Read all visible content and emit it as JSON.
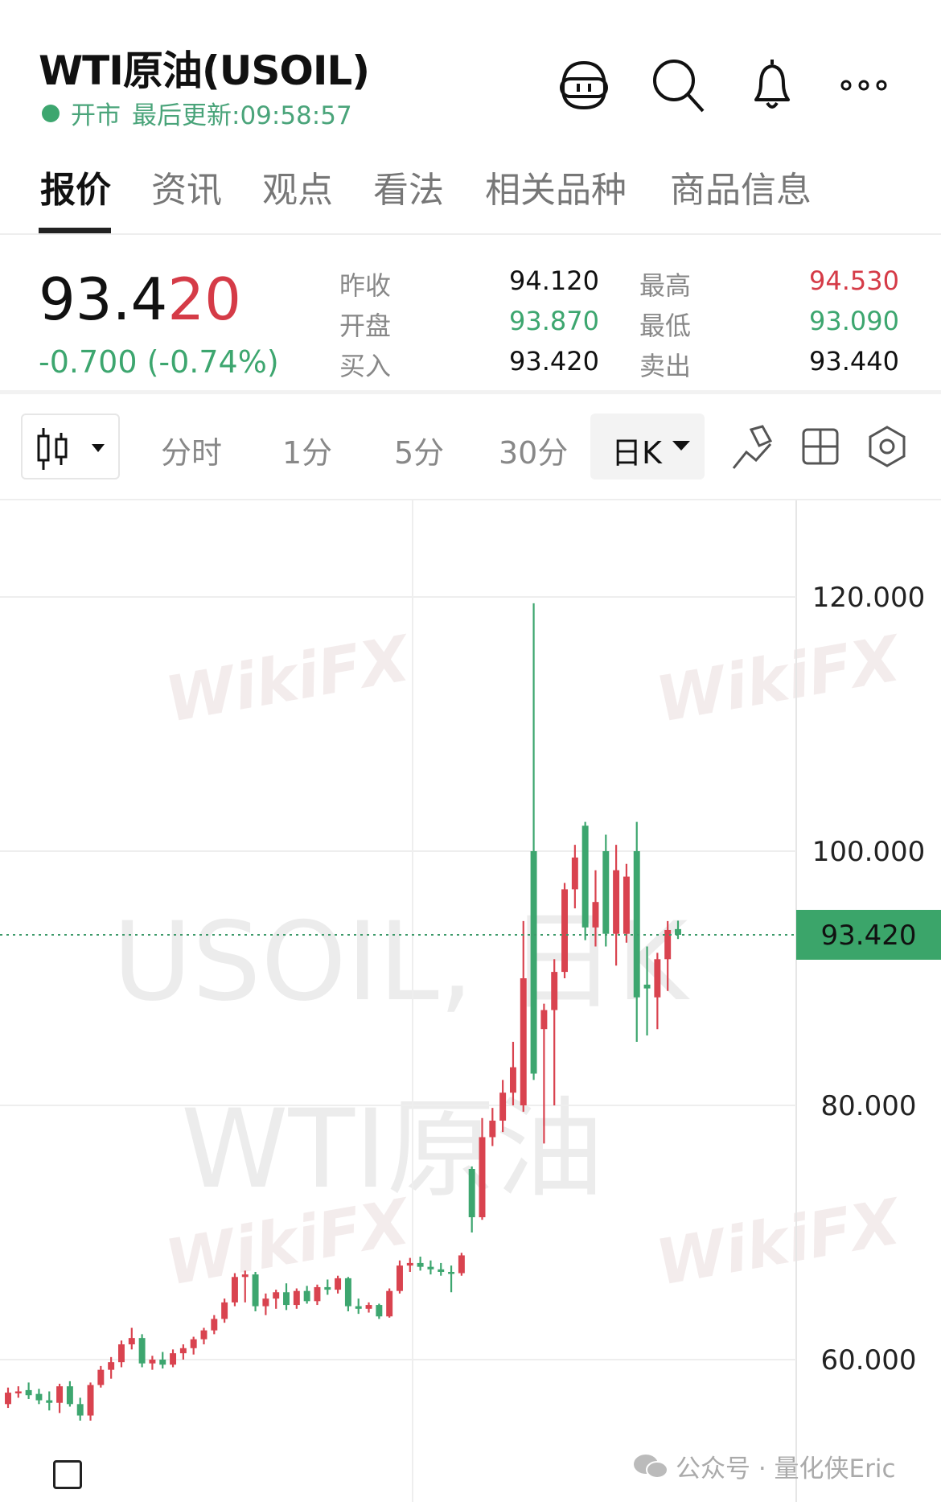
{
  "header": {
    "title": "WTI原油(USOIL)",
    "status": "开市",
    "updated": "最后更新:09:58:57",
    "icons": [
      "robot-icon",
      "search-icon",
      "bell-icon",
      "more-icon"
    ]
  },
  "tabs": [
    {
      "label": "报价",
      "active": true
    },
    {
      "label": "资讯"
    },
    {
      "label": "观点"
    },
    {
      "label": "看法"
    },
    {
      "label": "相关品种"
    },
    {
      "label": "商品信息"
    }
  ],
  "quote": {
    "price_main": "93.4",
    "price_tail": "20",
    "change": "-0.700 (-0.74%)",
    "stats": [
      {
        "label": "昨收",
        "value": "94.120",
        "color": "#111111"
      },
      {
        "label": "最高",
        "value": "94.530",
        "color": "#d53b47"
      },
      {
        "label": "开盘",
        "value": "93.870",
        "color": "#3da66f"
      },
      {
        "label": "最低",
        "value": "93.090",
        "color": "#3da66f"
      },
      {
        "label": "买入",
        "value": "93.420",
        "color": "#111111"
      },
      {
        "label": "卖出",
        "value": "93.440",
        "color": "#111111"
      }
    ]
  },
  "toolbar": {
    "intervals": [
      "分时",
      "1分",
      "5分",
      "30分"
    ],
    "selected": "日K",
    "icons": [
      "candlestick-icon",
      "draw-icon",
      "layout-grid-icon",
      "settings-icon"
    ]
  },
  "colors": {
    "up": "#d9434f",
    "down": "#3da66f",
    "accent": "#3ba56a"
  },
  "watermark": {
    "line1": "USOIL, 日K",
    "line2": "WTI原油",
    "brand": "WikiFX"
  },
  "caption": "公众号 · 量化侠Eric",
  "chart_data": {
    "type": "candlestick",
    "ylim": [
      52,
      128
    ],
    "yticks": [
      "120.000",
      "100.000",
      "80.000",
      "60.000"
    ],
    "last_price": "93.420",
    "ohlc": [
      [
        56.5,
        57.8,
        56.2,
        57.4
      ],
      [
        57.4,
        57.9,
        57.0,
        57.5
      ],
      [
        57.6,
        58.2,
        56.9,
        57.2
      ],
      [
        57.3,
        57.7,
        56.5,
        56.8
      ],
      [
        56.8,
        57.5,
        56.0,
        56.6
      ],
      [
        56.6,
        58.1,
        55.8,
        57.9
      ],
      [
        57.9,
        58.3,
        56.3,
        56.5
      ],
      [
        56.5,
        57.0,
        55.2,
        55.6
      ],
      [
        55.6,
        58.2,
        55.2,
        58.0
      ],
      [
        58.0,
        59.5,
        57.8,
        59.2
      ],
      [
        59.2,
        60.2,
        58.5,
        59.8
      ],
      [
        59.8,
        61.5,
        59.4,
        61.2
      ],
      [
        61.2,
        62.5,
        60.8,
        61.7
      ],
      [
        61.7,
        62.0,
        59.4,
        59.7
      ],
      [
        59.7,
        60.3,
        59.2,
        60.0
      ],
      [
        60.0,
        60.6,
        59.3,
        59.6
      ],
      [
        59.6,
        60.8,
        59.4,
        60.5
      ],
      [
        60.5,
        61.2,
        60.0,
        60.9
      ],
      [
        60.9,
        61.8,
        60.4,
        61.6
      ],
      [
        61.6,
        62.5,
        61.2,
        62.3
      ],
      [
        62.3,
        63.5,
        62.0,
        63.2
      ],
      [
        63.2,
        64.8,
        62.9,
        64.5
      ],
      [
        64.5,
        66.8,
        64.2,
        66.5
      ],
      [
        66.5,
        67.0,
        64.5,
        66.7
      ],
      [
        66.7,
        66.9,
        63.8,
        64.2
      ],
      [
        64.2,
        65.2,
        63.5,
        64.8
      ],
      [
        64.8,
        65.5,
        64.0,
        65.3
      ],
      [
        65.3,
        66.0,
        63.9,
        64.3
      ],
      [
        64.3,
        65.6,
        64.0,
        65.4
      ],
      [
        65.4,
        65.8,
        64.4,
        64.6
      ],
      [
        64.6,
        65.9,
        64.3,
        65.7
      ],
      [
        65.7,
        66.3,
        65.1,
        65.5
      ],
      [
        65.5,
        66.6,
        65.2,
        66.4
      ],
      [
        66.4,
        66.5,
        63.8,
        64.2
      ],
      [
        64.2,
        64.8,
        63.6,
        64.0
      ],
      [
        64.0,
        64.5,
        63.7,
        64.3
      ],
      [
        64.3,
        64.4,
        63.2,
        63.4
      ],
      [
        63.4,
        65.6,
        63.3,
        65.4
      ],
      [
        65.4,
        67.8,
        65.2,
        67.4
      ],
      [
        67.4,
        68.0,
        66.9,
        67.6
      ],
      [
        67.6,
        68.1,
        67.0,
        67.3
      ],
      [
        67.3,
        67.8,
        66.7,
        67.1
      ],
      [
        67.1,
        67.6,
        66.6,
        66.9
      ],
      [
        66.9,
        67.4,
        65.3,
        66.8
      ],
      [
        66.8,
        68.4,
        66.6,
        68.2
      ],
      [
        75.0,
        75.2,
        70.0,
        71.2
      ],
      [
        71.2,
        79.0,
        71.0,
        77.5
      ],
      [
        77.5,
        79.8,
        76.8,
        78.8
      ],
      [
        78.8,
        82.0,
        77.9,
        81.0
      ],
      [
        81.0,
        85.0,
        80.0,
        83.0
      ],
      [
        80.0,
        94.5,
        79.5,
        90.0
      ],
      [
        100.0,
        119.5,
        82.0,
        82.5
      ],
      [
        86.0,
        88.0,
        77.0,
        87.5
      ],
      [
        87.5,
        91.5,
        80.0,
        90.5
      ],
      [
        90.5,
        97.5,
        90.0,
        97.0
      ],
      [
        97.0,
        100.5,
        95.5,
        99.5
      ],
      [
        102.0,
        102.3,
        93.0,
        94.0
      ],
      [
        94.0,
        98.5,
        92.5,
        96.0
      ],
      [
        100.0,
        101.3,
        92.5,
        93.5
      ],
      [
        93.5,
        100.5,
        91.0,
        98.5
      ],
      [
        93.5,
        99.0,
        92.8,
        98.0
      ],
      [
        100.0,
        102.3,
        85.0,
        88.5
      ],
      [
        89.5,
        92.5,
        85.5,
        89.2
      ],
      [
        88.5,
        92.0,
        86.0,
        91.5
      ],
      [
        91.5,
        94.5,
        89.0,
        93.8
      ],
      [
        93.87,
        94.53,
        93.09,
        93.42
      ]
    ]
  }
}
